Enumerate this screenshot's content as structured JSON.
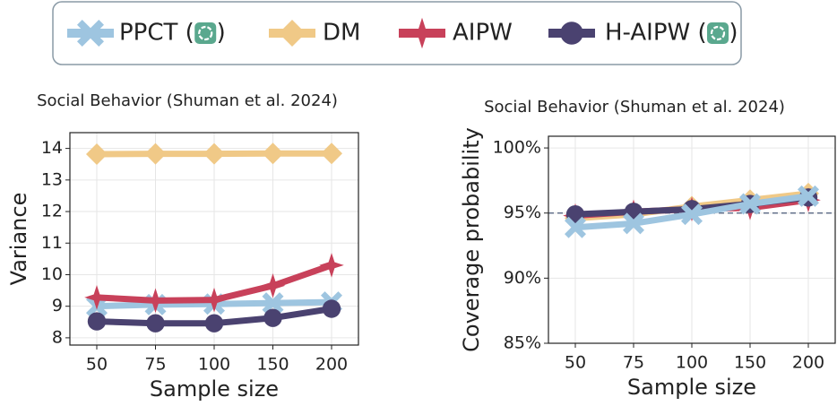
{
  "chart_data": [
    {
      "type": "line",
      "title": "Social Behavior (Shuman et al. 2024)",
      "x_label": "Sample size",
      "y_label": "Variance",
      "categories": [
        "50",
        "75",
        "100",
        "150",
        "200"
      ],
      "ylim": [
        7.77,
        14.5
      ],
      "yticks": [
        8,
        9,
        10,
        11,
        12,
        13,
        14
      ],
      "grid": true,
      "series": [
        {
          "name": "PPCT (   )",
          "color": "#9ec5e0",
          "marker": "x",
          "values": [
            9.0,
            9.05,
            9.07,
            9.1,
            9.13
          ]
        },
        {
          "name": "DM",
          "color": "#f0c987",
          "marker": "diamond",
          "values": [
            13.82,
            13.83,
            13.83,
            13.84,
            13.84
          ]
        },
        {
          "name": "AIPW",
          "color": "#c8415a",
          "marker": "star",
          "values": [
            9.28,
            9.18,
            9.2,
            9.65,
            10.3
          ]
        },
        {
          "name": "H-AIPW (   )",
          "color": "#4a4270",
          "marker": "circle",
          "values": [
            8.52,
            8.46,
            8.46,
            8.63,
            8.92
          ]
        }
      ]
    },
    {
      "type": "line",
      "title": "Social Behavior (Shuman et al. 2024)",
      "x_label": "Sample size",
      "y_label": "Coverage probability",
      "categories": [
        "50",
        "75",
        "100",
        "150",
        "200"
      ],
      "ylim": [
        85,
        100.9
      ],
      "yticks": [
        {
          "value": 85,
          "label": "85%"
        },
        {
          "value": 90,
          "label": "90%"
        },
        {
          "value": 95,
          "label": "95%"
        },
        {
          "value": 100,
          "label": "100%"
        }
      ],
      "grid": true,
      "reference_line": 95,
      "series": [
        {
          "color": "#f0c987",
          "marker": "diamond",
          "values": [
            94.6,
            94.9,
            95.5,
            96.0,
            96.5
          ]
        },
        {
          "color": "#c8415a",
          "marker": "star",
          "values": [
            94.8,
            95.1,
            95.3,
            95.4,
            96.0
          ]
        },
        {
          "color": "#4a4270",
          "marker": "circle",
          "values": [
            94.9,
            95.1,
            95.3,
            95.7,
            96.2
          ]
        },
        {
          "color": "#9ec5e0",
          "marker": "x",
          "values": [
            93.9,
            94.2,
            94.9,
            95.7,
            96.3
          ]
        }
      ]
    }
  ]
}
